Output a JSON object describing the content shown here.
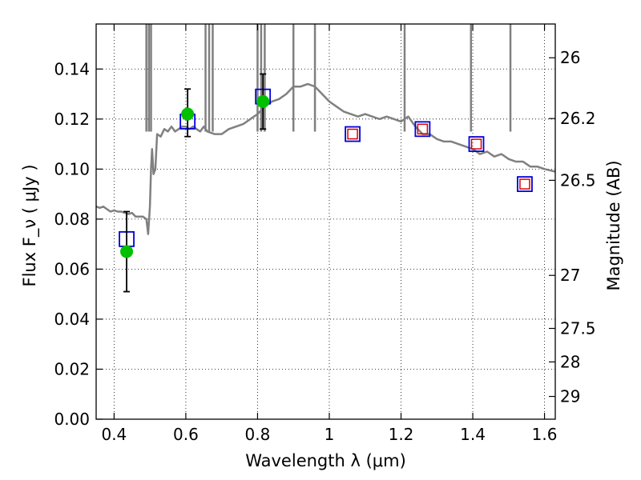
{
  "chart_data": {
    "type": "scatter",
    "title": "",
    "xlabel": "Wavelength  λ (μm)",
    "ylabel": "Flux  F_ν  ( μJy )",
    "y2label": "Magnitude (AB)",
    "xlim": [
      0.35,
      1.63
    ],
    "ylim": [
      0.0,
      0.158
    ],
    "grid": true,
    "x_ticks": [
      0.4,
      0.6,
      0.8,
      1,
      1.2,
      1.4,
      1.6
    ],
    "x_tick_labels": [
      "0.4",
      "0.6",
      "0.8",
      "1",
      "1.2",
      "1.4",
      "1.6"
    ],
    "y_ticks": [
      0.0,
      0.02,
      0.04,
      0.06,
      0.08,
      0.1,
      0.12,
      0.14
    ],
    "y_tick_labels": [
      "0.00",
      "0.02",
      "0.04",
      "0.06",
      "0.08",
      "0.10",
      "0.12",
      "0.14"
    ],
    "y2_ticks": [
      {
        "flux": 0.1445,
        "label": "26"
      },
      {
        "flux": 0.1202,
        "label": "26.2"
      },
      {
        "flux": 0.0955,
        "label": "26.5"
      },
      {
        "flux": 0.0575,
        "label": "27"
      },
      {
        "flux": 0.0363,
        "label": "27.5"
      },
      {
        "flux": 0.0229,
        "label": "28"
      },
      {
        "flux": 0.0091,
        "label": "29"
      }
    ],
    "colors": {
      "spectrum": "#808080",
      "observed": "#00c000",
      "model_blue": "#0000dd",
      "model_red": "#dd0000",
      "errorbar": "#000000",
      "grid": "#000000"
    },
    "series": [
      {
        "kind": "spectrum",
        "x": [
          0.35,
          0.36,
          0.37,
          0.38,
          0.39,
          0.4,
          0.41,
          0.42,
          0.43,
          0.44,
          0.45,
          0.46,
          0.47,
          0.48,
          0.49,
          0.495,
          0.5,
          0.503,
          0.506,
          0.51,
          0.515,
          0.52,
          0.53,
          0.54,
          0.55,
          0.56,
          0.57,
          0.58,
          0.59,
          0.6,
          0.61,
          0.62,
          0.63,
          0.64,
          0.65,
          0.66,
          0.68,
          0.7,
          0.72,
          0.74,
          0.76,
          0.78,
          0.8,
          0.82,
          0.84,
          0.86,
          0.88,
          0.9,
          0.92,
          0.94,
          0.96,
          0.98,
          1.0,
          1.02,
          1.04,
          1.06,
          1.08,
          1.1,
          1.12,
          1.14,
          1.16,
          1.18,
          1.2,
          1.22,
          1.24,
          1.26,
          1.28,
          1.3,
          1.32,
          1.34,
          1.36,
          1.38,
          1.4,
          1.42,
          1.44,
          1.46,
          1.48,
          1.5,
          1.52,
          1.54,
          1.56,
          1.58,
          1.6,
          1.63
        ],
        "y": [
          0.085,
          0.0845,
          0.085,
          0.084,
          0.083,
          0.0835,
          0.083,
          0.083,
          0.0825,
          0.082,
          0.0825,
          0.081,
          0.081,
          0.081,
          0.08,
          0.074,
          0.085,
          0.1,
          0.108,
          0.098,
          0.1,
          0.114,
          0.113,
          0.116,
          0.115,
          0.117,
          0.115,
          0.116,
          0.117,
          0.117,
          0.116,
          0.117,
          0.116,
          0.115,
          0.117,
          0.115,
          0.114,
          0.114,
          0.116,
          0.117,
          0.118,
          0.12,
          0.122,
          0.125,
          0.127,
          0.128,
          0.13,
          0.133,
          0.133,
          0.134,
          0.133,
          0.13,
          0.127,
          0.125,
          0.123,
          0.122,
          0.121,
          0.122,
          0.121,
          0.12,
          0.121,
          0.12,
          0.119,
          0.121,
          0.117,
          0.114,
          0.114,
          0.112,
          0.111,
          0.111,
          0.11,
          0.109,
          0.108,
          0.106,
          0.107,
          0.105,
          0.106,
          0.104,
          0.103,
          0.103,
          0.101,
          0.101,
          0.1,
          0.099
        ]
      },
      {
        "kind": "model_squares",
        "points": [
          {
            "x": 0.435,
            "y": 0.072,
            "inner_red": false
          },
          {
            "x": 0.605,
            "y": 0.119,
            "inner_red": false
          },
          {
            "x": 0.815,
            "y": 0.129,
            "inner_red": false
          },
          {
            "x": 1.065,
            "y": 0.114,
            "inner_red": true
          },
          {
            "x": 1.26,
            "y": 0.116,
            "inner_red": true
          },
          {
            "x": 1.41,
            "y": 0.11,
            "inner_red": true
          },
          {
            "x": 1.545,
            "y": 0.094,
            "inner_red": true
          }
        ]
      },
      {
        "kind": "observed",
        "points": [
          {
            "x": 0.435,
            "y": 0.067,
            "yerr_low": 0.051,
            "yerr_high": 0.083
          },
          {
            "x": 0.605,
            "y": 0.122,
            "yerr_low": 0.113,
            "yerr_high": 0.132
          },
          {
            "x": 0.815,
            "y": 0.127,
            "yerr_low": 0.116,
            "yerr_high": 0.138
          }
        ]
      }
    ]
  }
}
